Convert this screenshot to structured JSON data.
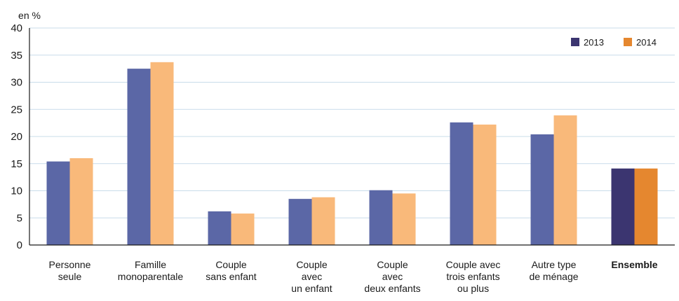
{
  "chart_data": {
    "type": "bar",
    "title": "",
    "ylabel": "en %",
    "xlabel": "",
    "ylim": [
      0,
      40
    ],
    "yticks": [
      0,
      5,
      10,
      15,
      20,
      25,
      30,
      35,
      40
    ],
    "grid": true,
    "legend_position": "top-right",
    "categories": [
      [
        "Personne",
        "seule"
      ],
      [
        "Famille",
        "monoparentale"
      ],
      [
        "Couple",
        "sans enfant"
      ],
      [
        "Couple",
        "avec",
        "un enfant"
      ],
      [
        "Couple",
        "avec",
        "deux enfants"
      ],
      [
        "Couple avec",
        "trois enfants",
        "ou plus"
      ],
      [
        "Autre type",
        "de ménage"
      ],
      [
        "Ensemble"
      ]
    ],
    "highlight_category_index": 7,
    "series": [
      {
        "name": "2013",
        "values": [
          15.4,
          32.5,
          6.2,
          8.5,
          10.1,
          22.6,
          20.4,
          14.1
        ],
        "color": "#5b67a6",
        "highlight_color": "#3b3570"
      },
      {
        "name": "2014",
        "values": [
          16.0,
          33.7,
          5.8,
          8.8,
          9.5,
          22.2,
          23.9,
          14.1
        ],
        "color": "#f9b97a",
        "highlight_color": "#e5872f"
      }
    ]
  }
}
